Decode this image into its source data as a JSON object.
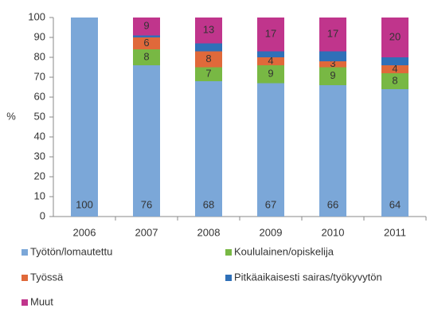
{
  "chart_data": {
    "type": "stacked-bar",
    "y_label": "%",
    "categories": [
      "2006",
      "2007",
      "2008",
      "2009",
      "2010",
      "2011"
    ],
    "series": [
      {
        "name": "Työtön/lomautettu",
        "color": "#7ba7d8",
        "values": [
          100,
          76,
          68,
          67,
          66,
          64
        ],
        "value_labels": [
          "100",
          "76",
          "68",
          "67",
          "66",
          "64"
        ]
      },
      {
        "name": "Koululainen/opiskelija",
        "color": "#78b844",
        "values": [
          0,
          8,
          7,
          9,
          9,
          8
        ],
        "value_labels": [
          null,
          "8",
          "7",
          "9",
          "9",
          "8"
        ]
      },
      {
        "name": "Työssä",
        "color": "#e0693a",
        "values": [
          0,
          6,
          8,
          4,
          3,
          4
        ],
        "value_labels": [
          null,
          "6",
          "8",
          "4",
          "3",
          "4"
        ]
      },
      {
        "name": "Pitkäaikaisesti sairas/työkyvytön",
        "color": "#2f70b8",
        "values": [
          0,
          1,
          4,
          3,
          5,
          4
        ],
        "value_labels": [
          null,
          null,
          null,
          null,
          null,
          null
        ]
      },
      {
        "name": "Muut",
        "color": "#c0358c",
        "values": [
          0,
          9,
          13,
          17,
          17,
          20
        ],
        "value_labels": [
          null,
          "9",
          "13",
          "17",
          "17",
          "20"
        ]
      }
    ],
    "ylim": [
      0,
      100
    ],
    "yticks": [
      0,
      10,
      20,
      30,
      40,
      50,
      60,
      70,
      80,
      90,
      100
    ],
    "grid": false
  }
}
